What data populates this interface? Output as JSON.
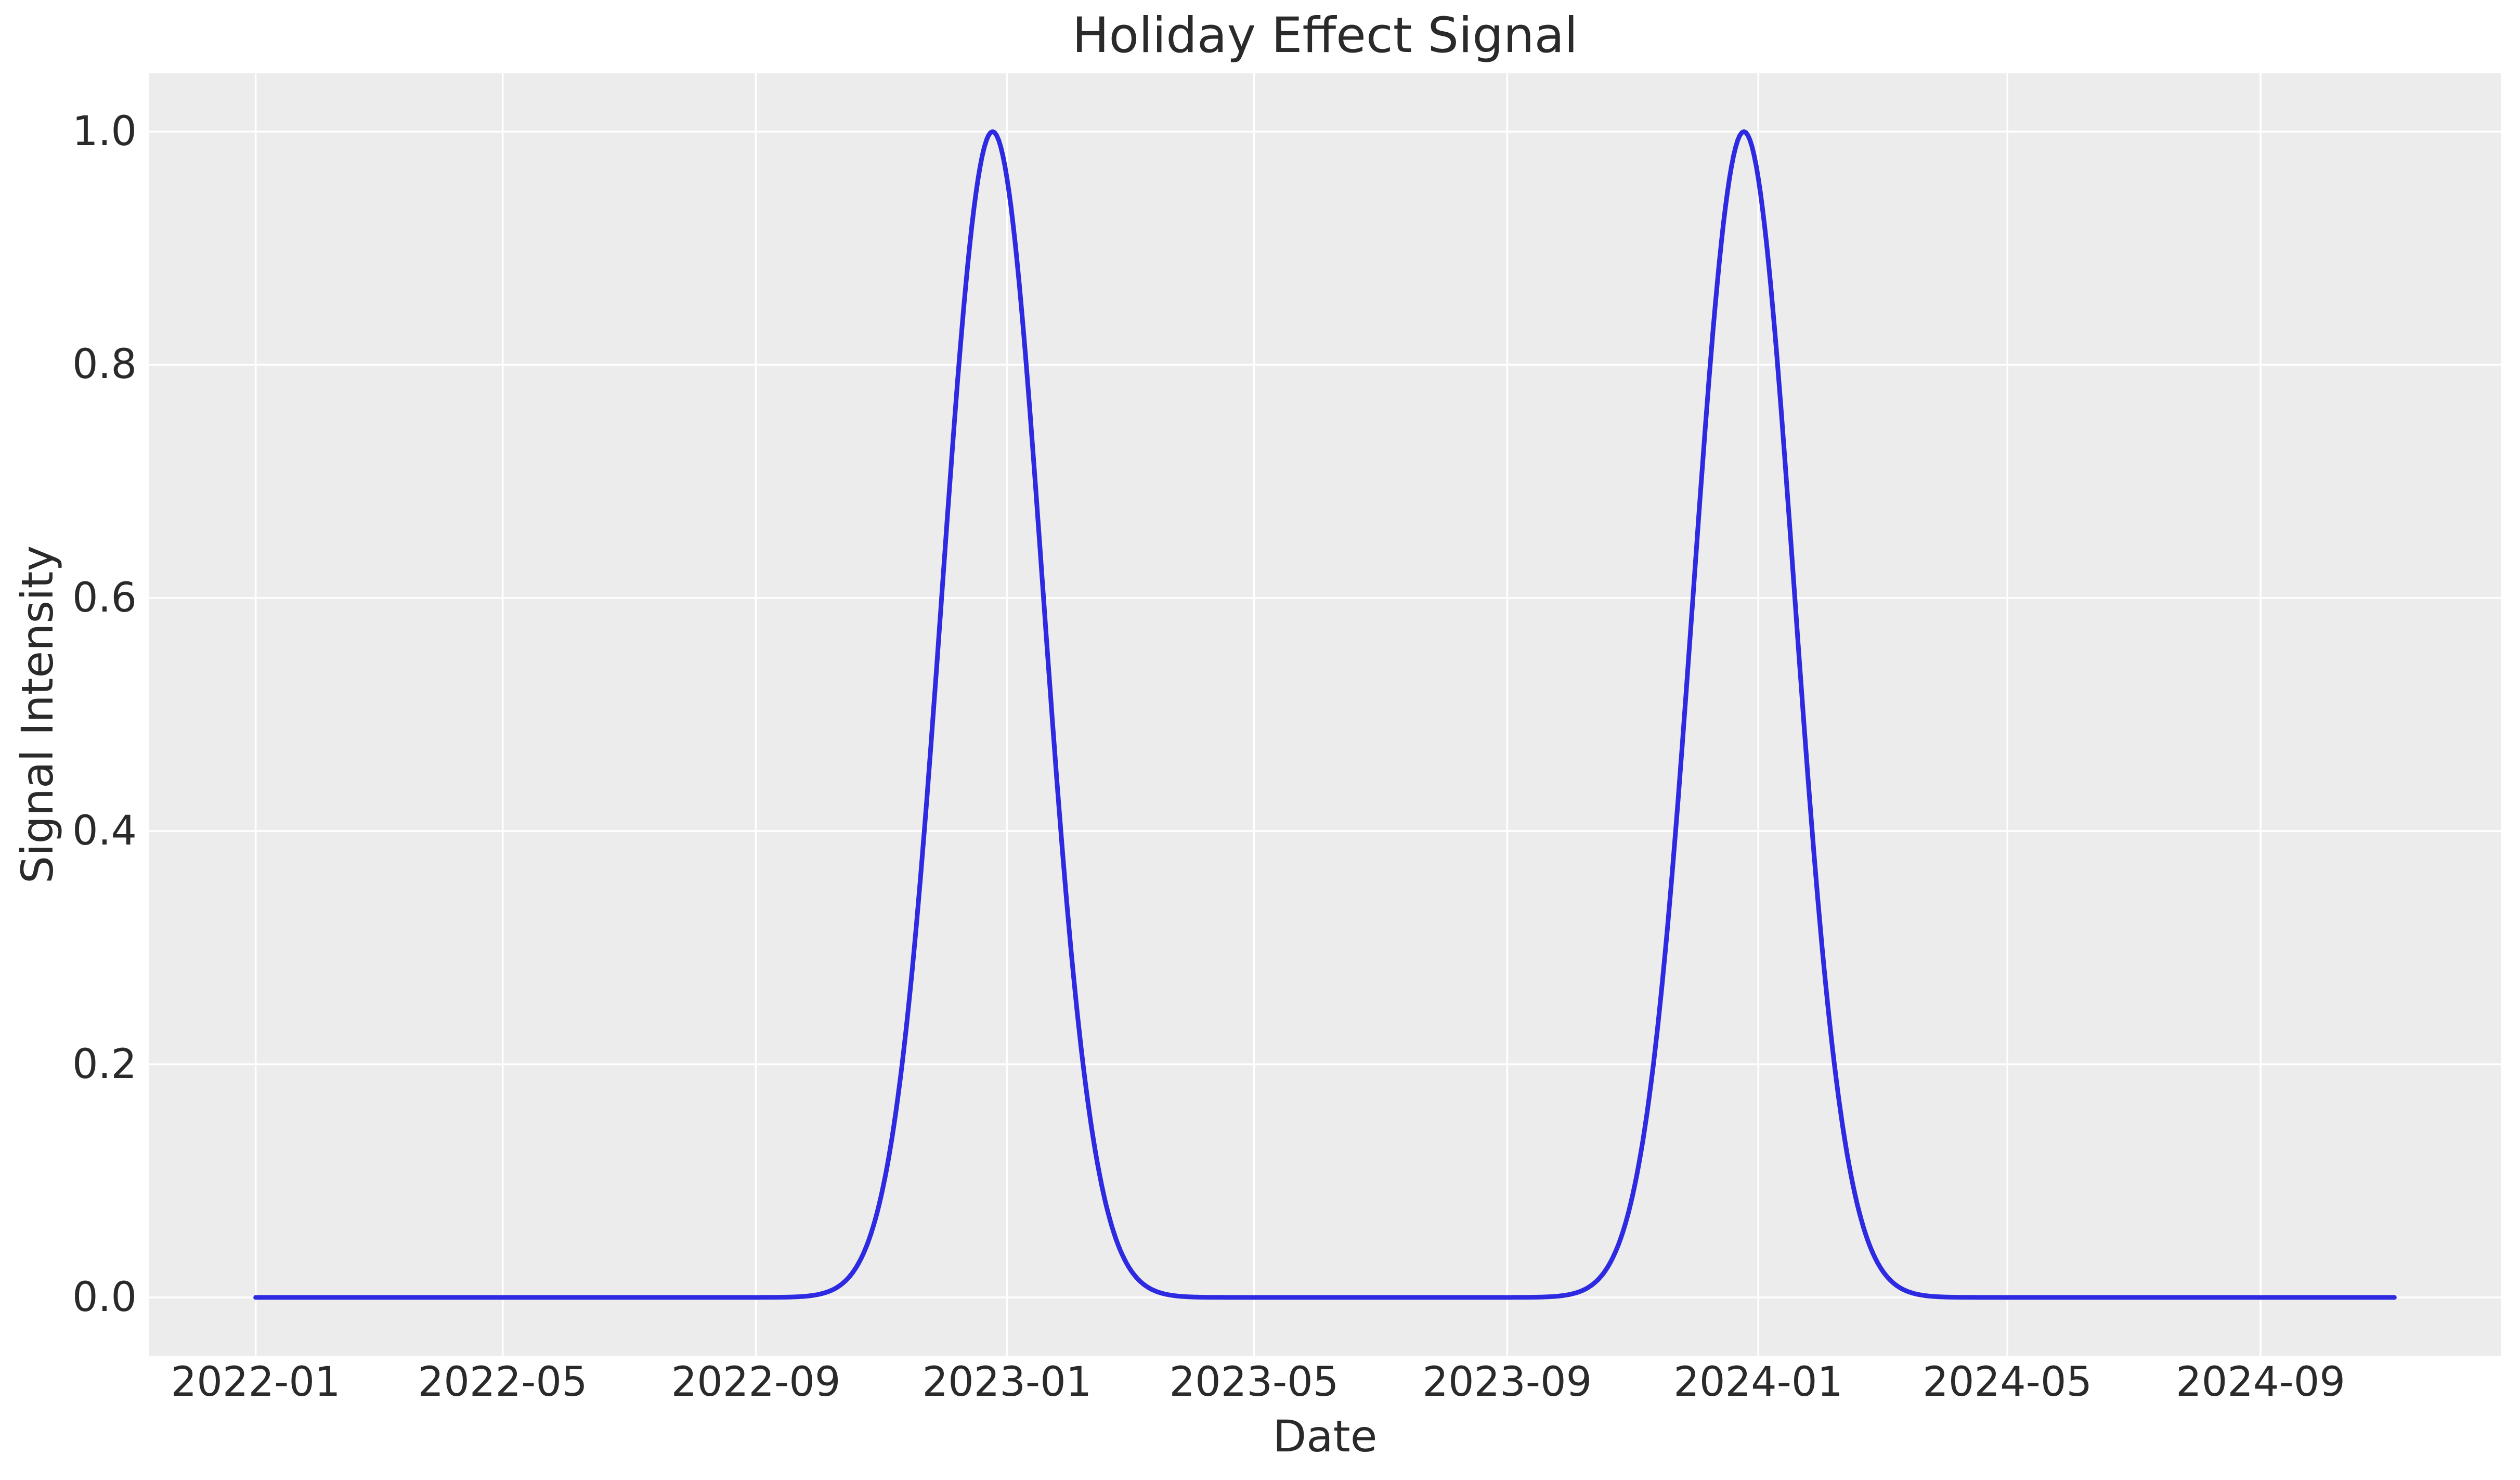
{
  "chart_data": {
    "type": "line",
    "title": "Holiday Effect Signal",
    "xlabel": "Date",
    "ylabel": "Signal Intensity",
    "x_start": "2022-01-01",
    "x_end": "2024-11-05",
    "x_margin": 0.05,
    "ylim": [
      -0.05,
      1.05
    ],
    "grid": true,
    "legend": false,
    "plot_background": "#ececec",
    "figure_background": "#ffffff",
    "grid_color": "#ffffff",
    "grid_width": 3.5,
    "text_color": "#2a2a2a",
    "xticks": [
      {
        "label": "2022-01",
        "date": "2022-01-01"
      },
      {
        "label": "2022-05",
        "date": "2022-05-01"
      },
      {
        "label": "2022-09",
        "date": "2022-09-01"
      },
      {
        "label": "2023-01",
        "date": "2023-01-01"
      },
      {
        "label": "2023-05",
        "date": "2023-05-01"
      },
      {
        "label": "2023-09",
        "date": "2023-09-01"
      },
      {
        "label": "2024-01",
        "date": "2024-01-01"
      },
      {
        "label": "2024-05",
        "date": "2024-05-01"
      },
      {
        "label": "2024-09",
        "date": "2024-09-01"
      }
    ],
    "yticks": [
      {
        "label": "0.0",
        "value": 0.0
      },
      {
        "label": "0.2",
        "value": 0.2
      },
      {
        "label": "0.4",
        "value": 0.4
      },
      {
        "label": "0.6",
        "value": 0.6
      },
      {
        "label": "0.8",
        "value": 0.8
      },
      {
        "label": "1.0",
        "value": 1.0
      }
    ],
    "series": [
      {
        "name": "Holiday Effect Signal",
        "color": "#2e2ae2",
        "line_width": 9,
        "shape": "annual_gaussian_peaks",
        "baseline": 0.0,
        "amplitude": 1.0,
        "sigma_days": 24.5,
        "peak_dates": [
          "2022-12-25",
          "2023-12-25"
        ],
        "peak_values": [
          1.0,
          1.0
        ]
      }
    ]
  }
}
